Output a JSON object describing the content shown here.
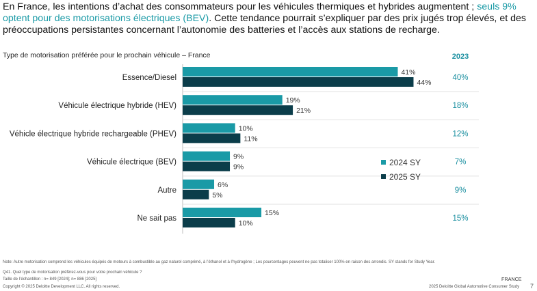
{
  "headline": {
    "part1": "En France, les intentions d’achat des consommateurs pour les véhicules thermiques et hybrides augmentent ; ",
    "accent": "seuls 9% optent pour des motorisations électriques (BEV)",
    "part2": ". Cette tendance pourrait s’expliquer par des prix jugés trop élevés, et des préoccupations persistantes concernant l’autonomie des batteries et l’accès aux stations de recharge."
  },
  "chart_data": {
    "type": "bar",
    "orientation": "horizontal",
    "title": "Type de motorisation préférée pour le prochain véhicule – France",
    "categories": [
      "Essence/Diesel",
      "Véhicule électrique hybride (HEV)",
      "Véhicle électrique hybride rechargeable (PHEV)",
      "Véhicule électrique (BEV)",
      "Autre",
      "Ne sait pas"
    ],
    "series": [
      {
        "name": "2024 SY",
        "values": [
          41,
          19,
          10,
          9,
          6,
          15
        ],
        "labels": [
          "41%",
          "19%",
          "10%",
          "9%",
          "6%",
          "15%"
        ],
        "color": "#1a9aa6"
      },
      {
        "name": "2025 SY",
        "values": [
          44,
          21,
          11,
          9,
          5,
          10
        ],
        "labels": [
          "44%",
          "21%",
          "11%",
          "9%",
          "5%",
          "10%"
        ],
        "color": "#0b3d4a"
      }
    ],
    "comparison_column": {
      "header": "2023",
      "values": [
        "40%",
        "18%",
        "12%",
        "7%",
        "9%",
        "15%"
      ],
      "color": "#1a8fa0"
    },
    "xlim": [
      0,
      100
    ],
    "legend_position": "right"
  },
  "footer": {
    "note": "Note: Autre motorisation comprend les véhicules équipés de moteurs à combustible au gaz naturel comprimé, à l’éthanol et à l’hydrogène ; Les pourcentages peuvent ne pas totaliser 100% en raison des arrondis. SY stands for Study Year.",
    "question": "Q41. Quel type de motorisation préférez-vous pour votre prochain véhicule ?",
    "sample": "Taille de l’échantillon : n= 849 [2024]; n= 886 [2025]",
    "copyright": "Copyright © 2025 Deloitte Development LLC. All rights reserved.",
    "country": "FRANCE",
    "study": "2025 Deloitte Global Automotive Consumer Study",
    "page": "7"
  }
}
